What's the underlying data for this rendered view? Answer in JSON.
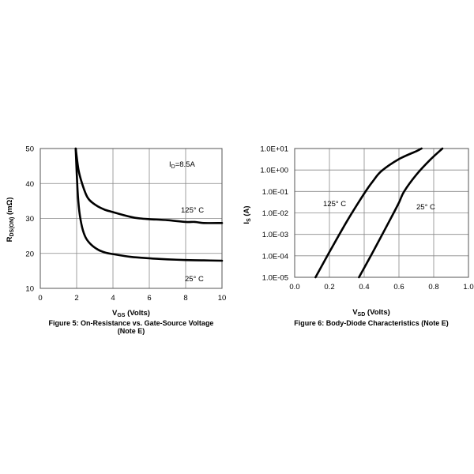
{
  "chart_data": [
    {
      "type": "line",
      "caption_line1": "Figure 5: On-Resistance vs. Gate-Source Voltage",
      "caption_line2": "(Note E)",
      "xlabel_main": "V",
      "xlabel_sub": "GS",
      "xlabel_rest": " (Volts)",
      "ylabel_main": "R",
      "ylabel_sub": "DS(ON)",
      "ylabel_rest": " (mΩ)",
      "xlim": [
        0,
        10
      ],
      "ylim": [
        10,
        50
      ],
      "x_ticks": [
        "0",
        "2",
        "4",
        "6",
        "8",
        "10"
      ],
      "y_ticks": [
        "10",
        "20",
        "30",
        "40",
        "50"
      ],
      "grid": true,
      "condition_main": "I",
      "condition_sub": "D",
      "condition_rest": "=8.5A",
      "series": [
        {
          "name": "125° C",
          "points": [
            [
              1.95,
              50
            ],
            [
              2.1,
              44
            ],
            [
              2.3,
              40
            ],
            [
              2.6,
              36
            ],
            [
              3.0,
              34
            ],
            [
              3.5,
              32.6
            ],
            [
              4.0,
              31.8
            ],
            [
              5.0,
              30.4
            ],
            [
              5.5,
              30.0
            ],
            [
              6.0,
              29.8
            ],
            [
              7.0,
              29.5
            ],
            [
              8.0,
              29.0
            ],
            [
              8.5,
              29.0
            ],
            [
              9.0,
              28.7
            ],
            [
              10.0,
              28.7
            ]
          ]
        },
        {
          "name": "25° C",
          "points": [
            [
              1.95,
              50
            ],
            [
              2.05,
              38
            ],
            [
              2.15,
              32
            ],
            [
              2.3,
              27.5
            ],
            [
              2.5,
              24.5
            ],
            [
              2.8,
              22.5
            ],
            [
              3.2,
              21.0
            ],
            [
              3.6,
              20.2
            ],
            [
              4.0,
              19.8
            ],
            [
              5.0,
              19.0
            ],
            [
              6.0,
              18.6
            ],
            [
              7.0,
              18.3
            ],
            [
              8.0,
              18.1
            ],
            [
              9.0,
              18.0
            ],
            [
              10.0,
              17.9
            ]
          ]
        }
      ]
    },
    {
      "type": "line",
      "caption_line1": "Figure 6: Body-Diode Characteristics (Note E)",
      "xlabel_main": "V",
      "xlabel_sub": "SD",
      "xlabel_rest": " (Volts)",
      "ylabel_main": "I",
      "ylabel_sub": "S",
      "ylabel_rest": " (A)",
      "xlim": [
        0.0,
        1.0
      ],
      "ylim": [
        1e-05,
        10.0
      ],
      "yscale": "log",
      "x_ticks": [
        "0.0",
        "0.2",
        "0.4",
        "0.6",
        "0.8",
        "1.0"
      ],
      "y_ticks": [
        "1.0E-05",
        "1.0E-04",
        "1.0E-03",
        "1.0E-02",
        "1.0E-01",
        "1.0E+00",
        "1.0E+01"
      ],
      "grid": true,
      "series": [
        {
          "name": "125° C",
          "points": [
            [
              0.12,
              1e-05
            ],
            [
              0.2,
              0.00015
            ],
            [
              0.3,
              0.004
            ],
            [
              0.4,
              0.08
            ],
            [
              0.45,
              0.3
            ],
            [
              0.5,
              0.9
            ],
            [
              0.6,
              3.2
            ],
            [
              0.7,
              7.5
            ],
            [
              0.73,
              10.0
            ]
          ]
        },
        {
          "name": "25° C",
          "points": [
            [
              0.37,
              1e-05
            ],
            [
              0.45,
              0.00015
            ],
            [
              0.55,
              0.005
            ],
            [
              0.6,
              0.03
            ],
            [
              0.63,
              0.1
            ],
            [
              0.7,
              0.6
            ],
            [
              0.78,
              3.0
            ],
            [
              0.85,
              10.0
            ]
          ]
        }
      ]
    }
  ]
}
